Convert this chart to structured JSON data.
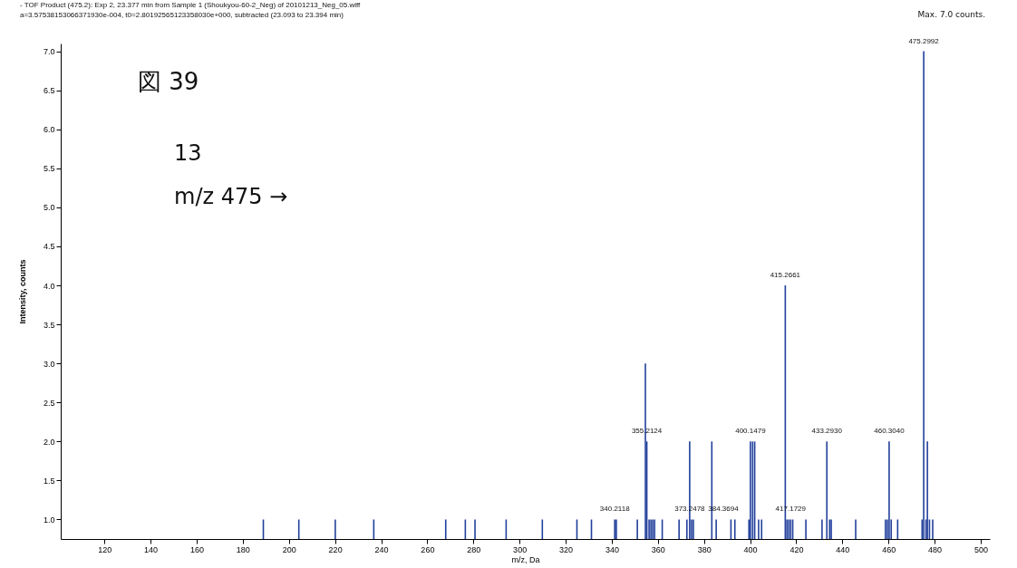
{
  "chart_data": {
    "type": "bar",
    "title": "- TOF Product (475.2): Exp 2, 23.377 min from Sample 1 (Shoukyou-60-2_Neg) of 20101213_Neg_05.wiff",
    "subtitle": "a=3.57538153066371930e-004, t0=2.80192565123358030e+000, subtracted (23.093 to 23.394 min)",
    "xlabel": "m/z, Da",
    "ylabel": "Intensity, counts",
    "x": [
      188.9,
      204.3,
      220.1,
      236.8,
      268.0,
      276.5,
      280.7,
      294.2,
      309.9,
      324.9,
      331.2,
      341.3,
      342.0,
      351.1,
      354.6,
      355.2124,
      356.2,
      357.0,
      357.8,
      358.6,
      361.9,
      369.2,
      372.6,
      373.8,
      374.6,
      375.4,
      383.4,
      385.3,
      391.7,
      393.4,
      399.5,
      400.1479,
      401.1,
      402.0,
      403.7,
      405.0,
      415.2661,
      416.0,
      416.8,
      417.6,
      418.5,
      424.2,
      431.2,
      433.293,
      434.5,
      435.2,
      445.8,
      458.7,
      459.5,
      460.304,
      461.2,
      464.0,
      474.6,
      475.2992,
      476.3,
      476.9,
      477.8,
      479.2
    ],
    "values": [
      1,
      1,
      1,
      1,
      1,
      1,
      1,
      1,
      1,
      1,
      1,
      1,
      1,
      1,
      3,
      2,
      1,
      1,
      1,
      1,
      1,
      1,
      1,
      2,
      1,
      1,
      2,
      1,
      1,
      1,
      1,
      2,
      2,
      2,
      1,
      1,
      4,
      1,
      1,
      1,
      1,
      1,
      1,
      2,
      1,
      1,
      1,
      1,
      1,
      2,
      1,
      1,
      1,
      7,
      1,
      2,
      1,
      1
    ],
    "color": "#22409c",
    "xlim": [
      103,
      502
    ],
    "xticks": [
      120,
      140,
      160,
      180,
      200,
      220,
      240,
      260,
      280,
      300,
      320,
      340,
      360,
      380,
      400,
      420,
      440,
      460,
      480,
      500
    ],
    "ylim": [
      0.75,
      7.1
    ],
    "yticks": [
      {
        "value": 1,
        "label": "1.0"
      },
      {
        "value": 1.5,
        "label": "1.5"
      },
      {
        "value": 2,
        "label": "2.0"
      },
      {
        "value": 2.5,
        "label": "2.5"
      },
      {
        "value": 3,
        "label": "3.0"
      },
      {
        "value": 3.5,
        "label": "3.5"
      },
      {
        "value": 4,
        "label": "4.0"
      },
      {
        "value": 4.5,
        "label": "4.5"
      },
      {
        "value": 5,
        "label": "5.0"
      },
      {
        "value": 5.5,
        "label": "5.5"
      },
      {
        "value": 6,
        "label": "6.0"
      },
      {
        "value": 6.5,
        "label": "6.5"
      },
      {
        "value": 7,
        "label": "7.0"
      }
    ],
    "annotations": [
      "図 39",
      "13",
      "m/z 475 →",
      "Max. 7.0 counts.",
      {
        "text": "340.2118",
        "x": 341.3,
        "y": 1
      },
      {
        "text": "355.2124",
        "x": 355.2124,
        "y": 2
      },
      {
        "text": "373.2478",
        "x": 373.8,
        "y": 1
      },
      {
        "text": "384.3694",
        "x": 385.3,
        "y": 1
      },
      {
        "text": "400.1479",
        "x": 400.1479,
        "y": 2
      },
      {
        "text": "415.2661",
        "x": 415.2661,
        "y": 4
      },
      {
        "text": "417.1729",
        "x": 417.6,
        "y": 1
      },
      {
        "text": "433.2930",
        "x": 433.293,
        "y": 2
      },
      {
        "text": "460.3040",
        "x": 460.304,
        "y": 2
      },
      {
        "text": "475.2992",
        "x": 475.2992,
        "y": 7
      }
    ],
    "grid": false
  }
}
